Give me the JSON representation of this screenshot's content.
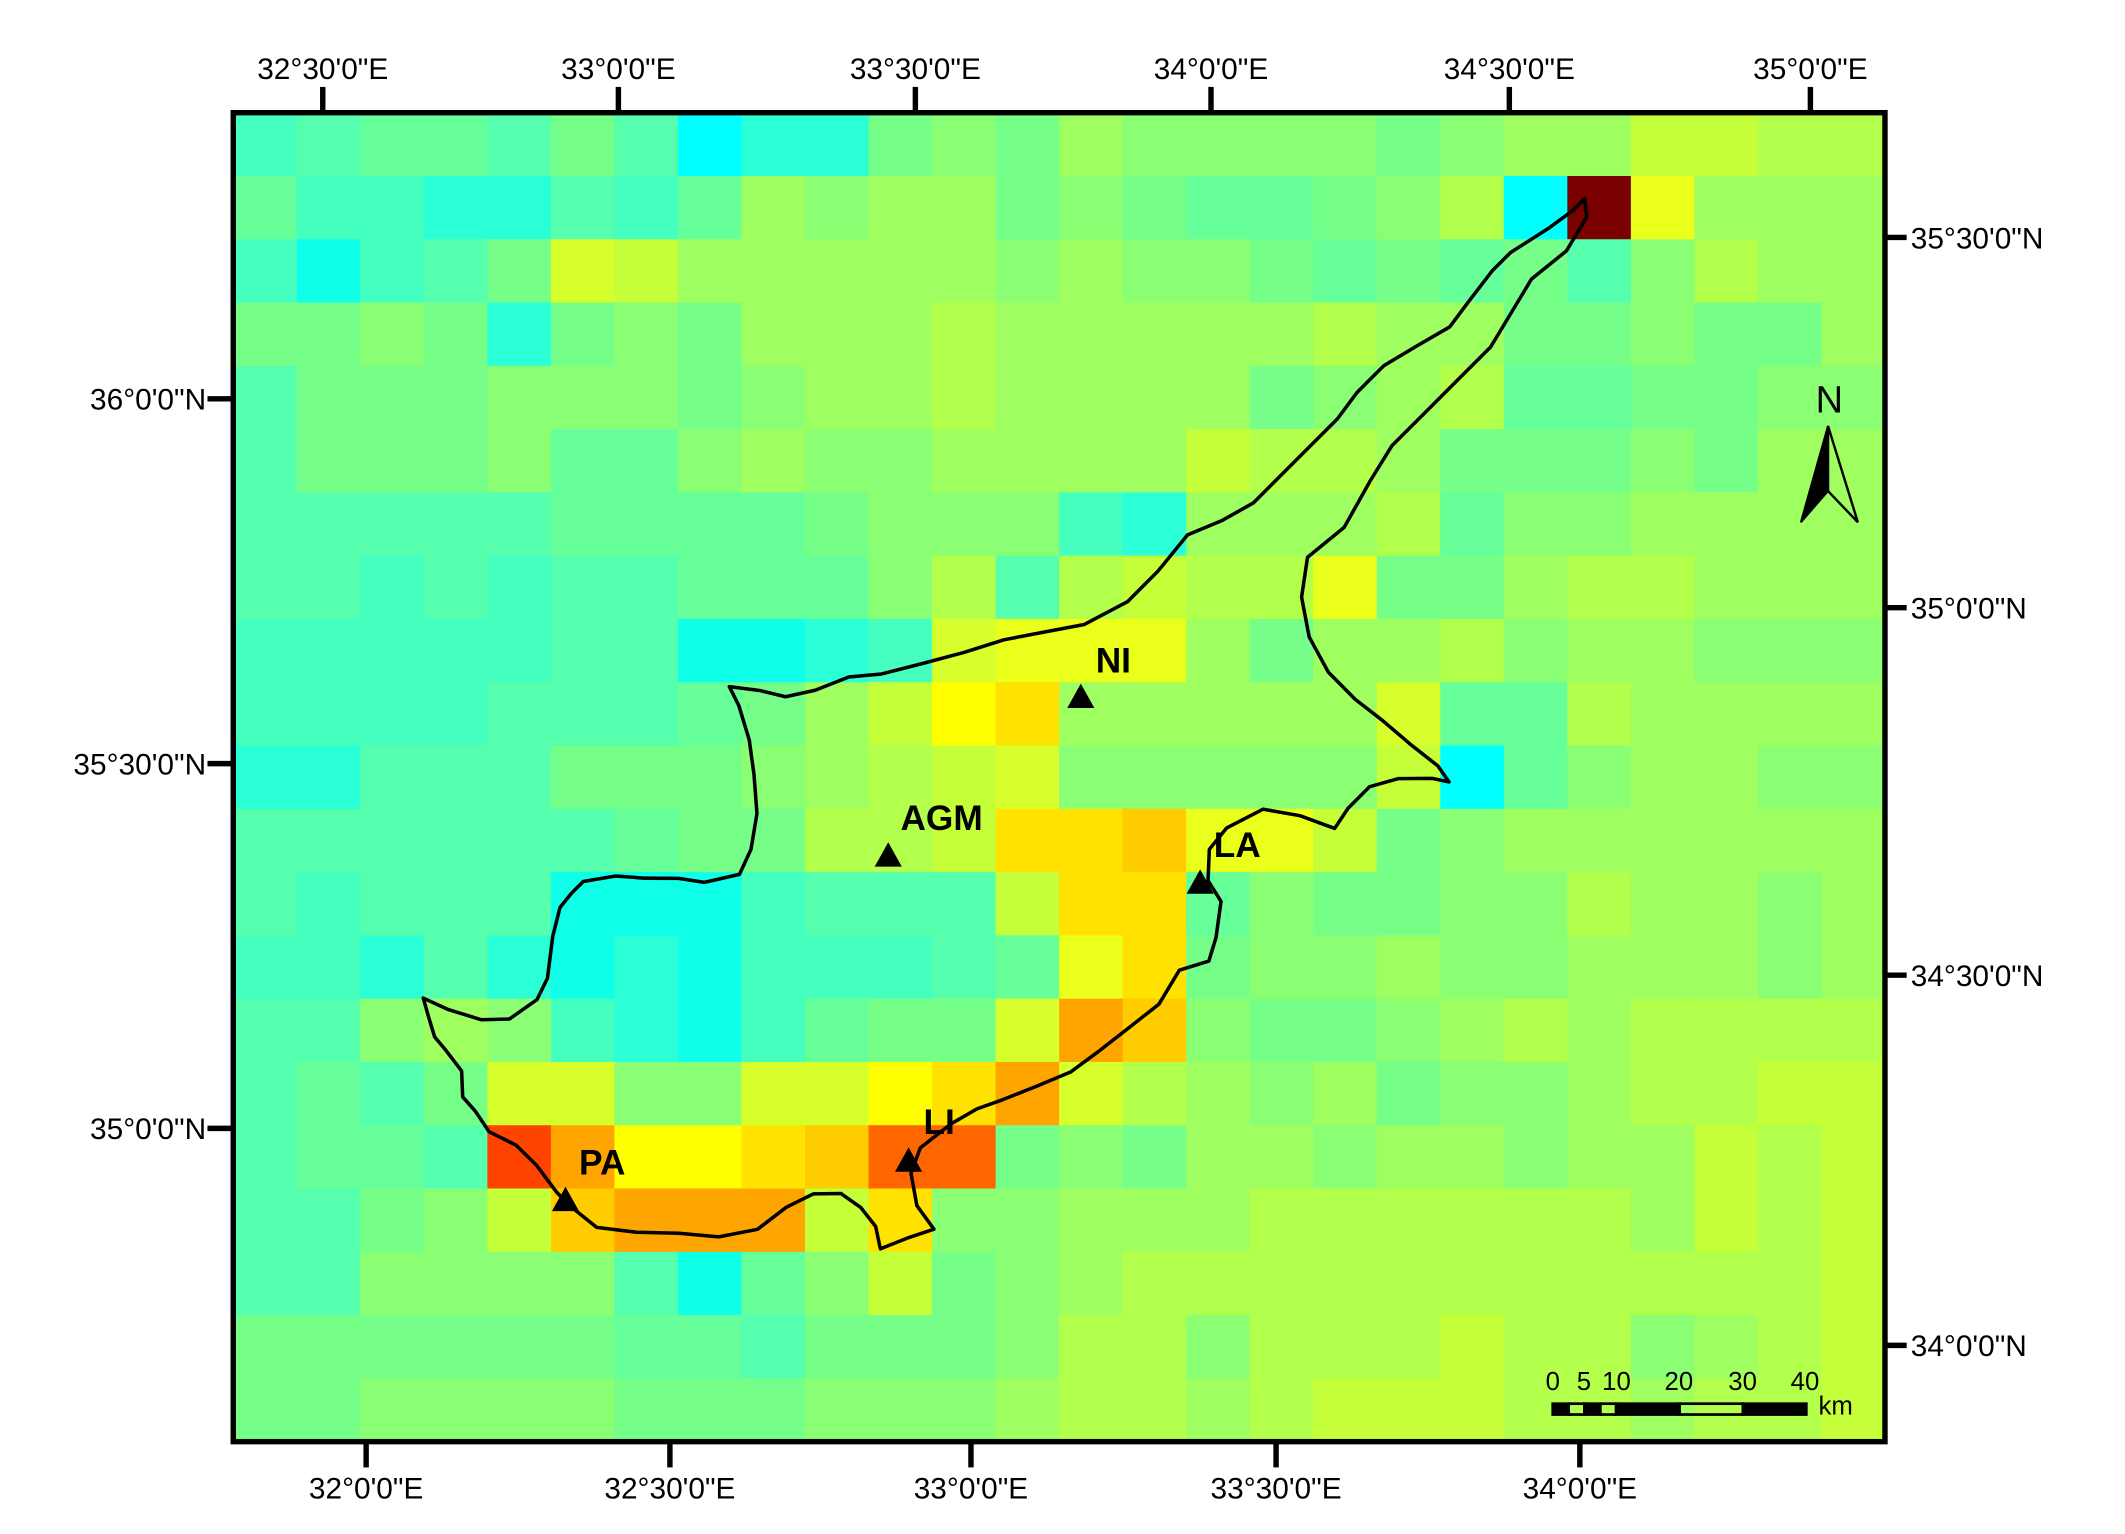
{
  "palette": [
    "#00FFFF",
    "#10FFE8",
    "#2AFFD6",
    "#45FFBE",
    "#55FFAE",
    "#66FF9A",
    "#76FF88",
    "#8AFF74",
    "#A0FF60",
    "#B2FF4C",
    "#C4FF3A",
    "#D6FF2C",
    "#EAFF1A",
    "#FFFF00",
    "#FFE200",
    "#FFCC00",
    "#FFA500",
    "#FF6600",
    "#FF4400",
    "#7A0000"
  ],
  "raster_levels": [
    [
      3,
      4,
      5,
      5,
      4,
      6,
      4,
      0,
      2,
      2,
      6,
      7,
      6,
      8,
      7,
      7,
      7,
      7,
      6,
      7,
      8,
      8,
      10,
      10,
      9,
      9
    ],
    [
      5,
      3,
      3,
      2,
      2,
      4,
      3,
      5,
      8,
      7,
      8,
      8,
      6,
      7,
      6,
      5,
      5,
      6,
      7,
      9,
      0,
      19,
      12,
      8,
      8,
      8
    ],
    [
      3,
      1,
      3,
      4,
      6,
      11,
      10,
      8,
      8,
      8,
      8,
      8,
      7,
      8,
      7,
      7,
      6,
      5,
      6,
      5,
      6,
      4,
      7,
      9,
      8,
      8
    ],
    [
      6,
      6,
      7,
      6,
      2,
      6,
      7,
      6,
      8,
      8,
      8,
      9,
      8,
      8,
      8,
      8,
      8,
      9,
      8,
      8,
      6,
      6,
      7,
      6,
      6,
      8
    ],
    [
      4,
      6,
      6,
      6,
      7,
      7,
      7,
      6,
      7,
      8,
      8,
      9,
      8,
      8,
      8,
      8,
      6,
      7,
      8,
      9,
      5,
      5,
      6,
      6,
      7,
      7
    ],
    [
      4,
      6,
      6,
      6,
      7,
      5,
      5,
      7,
      8,
      7,
      7,
      8,
      8,
      8,
      8,
      10,
      9,
      9,
      8,
      6,
      6,
      6,
      7,
      6,
      8,
      8
    ],
    [
      4,
      4,
      4,
      4,
      4,
      5,
      5,
      5,
      5,
      6,
      7,
      7,
      7,
      3,
      2,
      8,
      8,
      8,
      9,
      5,
      7,
      7,
      8,
      8,
      8,
      8
    ],
    [
      4,
      4,
      3,
      4,
      3,
      4,
      4,
      5,
      5,
      5,
      7,
      9,
      4,
      9,
      10,
      9,
      9,
      12,
      6,
      6,
      8,
      9,
      9,
      8,
      8,
      8
    ],
    [
      3,
      3,
      3,
      3,
      3,
      4,
      4,
      1,
      1,
      2,
      3,
      11,
      12,
      12,
      12,
      8,
      6,
      8,
      8,
      9,
      7,
      8,
      8,
      7,
      7,
      7
    ],
    [
      3,
      3,
      3,
      3,
      4,
      4,
      4,
      5,
      6,
      8,
      10,
      13,
      14,
      8,
      8,
      8,
      8,
      8,
      11,
      5,
      5,
      9,
      8,
      8,
      8,
      8
    ],
    [
      2,
      2,
      4,
      4,
      4,
      6,
      6,
      6,
      7,
      8,
      9,
      10,
      11,
      7,
      7,
      7,
      7,
      7,
      10,
      0,
      5,
      7,
      8,
      8,
      7,
      7
    ],
    [
      4,
      4,
      4,
      4,
      4,
      4,
      5,
      6,
      6,
      9,
      9,
      10,
      14,
      14,
      15,
      12,
      12,
      10,
      6,
      7,
      8,
      8,
      8,
      8,
      8,
      8
    ],
    [
      4,
      3,
      4,
      4,
      4,
      1,
      1,
      1,
      3,
      4,
      4,
      4,
      10,
      14,
      14,
      5,
      7,
      6,
      6,
      7,
      7,
      9,
      8,
      8,
      7,
      8
    ],
    [
      3,
      3,
      2,
      4,
      2,
      1,
      2,
      1,
      3,
      3,
      3,
      4,
      5,
      12,
      14,
      6,
      7,
      7,
      8,
      7,
      7,
      8,
      8,
      8,
      7,
      8
    ],
    [
      4,
      4,
      7,
      8,
      7,
      3,
      2,
      1,
      3,
      5,
      6,
      6,
      11,
      16,
      15,
      7,
      6,
      6,
      7,
      8,
      9,
      8,
      9,
      9,
      9,
      9
    ],
    [
      4,
      5,
      4,
      6,
      11,
      11,
      7,
      7,
      11,
      11,
      13,
      14,
      16,
      11,
      9,
      8,
      7,
      8,
      6,
      7,
      7,
      8,
      9,
      9,
      10,
      10
    ],
    [
      4,
      5,
      5,
      4,
      18,
      16,
      13,
      13,
      14,
      15,
      17,
      17,
      6,
      7,
      6,
      8,
      8,
      7,
      8,
      8,
      7,
      8,
      8,
      10,
      9,
      10
    ],
    [
      4,
      4,
      6,
      7,
      10,
      15,
      16,
      16,
      16,
      10,
      14,
      7,
      7,
      8,
      8,
      8,
      9,
      9,
      9,
      9,
      9,
      9,
      8,
      10,
      9,
      10
    ],
    [
      4,
      4,
      7,
      7,
      7,
      7,
      4,
      1,
      5,
      7,
      10,
      6,
      7,
      8,
      9,
      9,
      9,
      9,
      9,
      9,
      9,
      9,
      9,
      9,
      9,
      10
    ],
    [
      6,
      6,
      6,
      6,
      6,
      6,
      5,
      5,
      4,
      6,
      6,
      6,
      7,
      9,
      9,
      7,
      9,
      9,
      9,
      10,
      9,
      9,
      7,
      8,
      9,
      10
    ],
    [
      6,
      6,
      7,
      7,
      7,
      7,
      6,
      6,
      6,
      7,
      7,
      7,
      8,
      9,
      9,
      8,
      9,
      10,
      10,
      10,
      9,
      9,
      8,
      9,
      9,
      10
    ]
  ],
  "axes": {
    "top": [
      "32°30'0\"E",
      "33°0'0\"E",
      "33°30'0\"E",
      "34°0'0\"E",
      "34°30'0\"E",
      "35°0'0\"E"
    ],
    "bottom": [
      "32°0'0\"E",
      "32°30'0\"E",
      "33°0'0\"E",
      "33°30'0\"E",
      "34°0'0\"E"
    ],
    "left": [
      "36°0'0\"N",
      "35°30'0\"N",
      "35°0'0\"N"
    ],
    "right": [
      "35°30'0\"N",
      "35°0'0\"N",
      "34°30'0\"N",
      "34°0'0\"N"
    ]
  },
  "stations": [
    {
      "code": "NI"
    },
    {
      "code": "AGM"
    },
    {
      "code": "LA"
    },
    {
      "code": "LI"
    },
    {
      "code": "PA"
    }
  ],
  "north_arrow": {
    "label": "N"
  },
  "scale_bar": {
    "ticks": [
      "0",
      "5",
      "10",
      "20",
      "30",
      "40"
    ],
    "unit": "km"
  }
}
